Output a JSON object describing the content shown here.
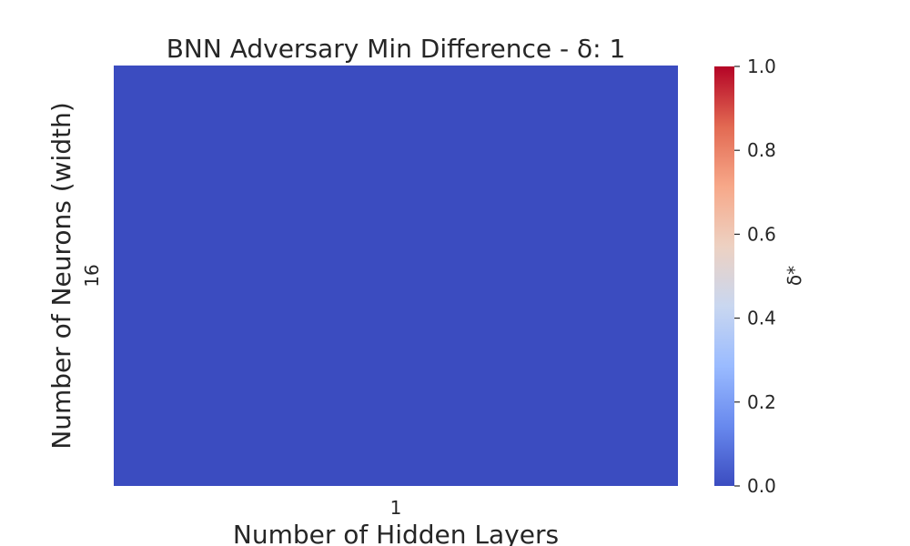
{
  "chart_data": {
    "type": "heatmap",
    "title": "BNN Adversary Min Difference - δ: 1",
    "xlabel": "Number of Hidden Layers",
    "ylabel": "Number of Neurons (width)",
    "x_categories": [
      "1"
    ],
    "y_categories": [
      "16"
    ],
    "values": [
      [
        0.0
      ]
    ],
    "colorbar": {
      "label": "δ*",
      "range": [
        0.0,
        1.0
      ],
      "ticks": [
        "0.0",
        "0.2",
        "0.4",
        "0.6",
        "0.8",
        "1.0"
      ],
      "colormap": "coolwarm",
      "colors": [
        "#3b4cc0",
        "#6889ee",
        "#9abbff",
        "#c9d7f0",
        "#edd1c2",
        "#f7a889",
        "#e26952",
        "#b40426"
      ]
    },
    "grid": false
  }
}
